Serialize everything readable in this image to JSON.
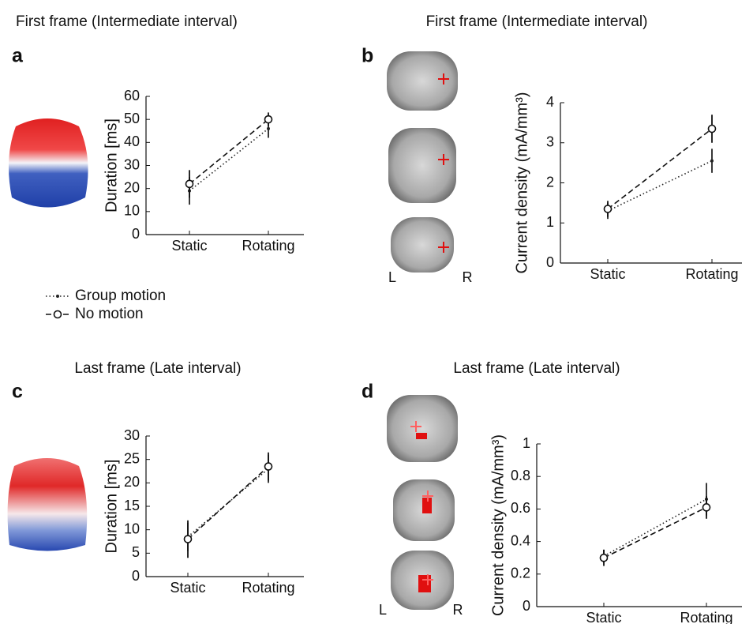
{
  "chart_data": [
    {
      "type": "line",
      "panel": "a",
      "title": "First frame (Intermediate interval)",
      "ylabel": "Duration [ms]",
      "categories": [
        "Static",
        "Rotating"
      ],
      "ylim": [
        0,
        60
      ],
      "yticks": [
        0,
        10,
        20,
        30,
        40,
        50,
        60
      ],
      "series": [
        {
          "name": "Group motion",
          "color": "#222222",
          "dash": "dotted",
          "marker": "dot",
          "values": [
            19,
            46
          ],
          "errors": [
            6,
            4
          ]
        },
        {
          "name": "No motion",
          "color": "#111111",
          "dash": "dashed",
          "marker": "circle",
          "values": [
            22,
            50
          ],
          "errors": [
            6,
            3
          ]
        }
      ],
      "legend": true
    },
    {
      "type": "line",
      "panel": "b",
      "title": "First frame (Intermediate interval)",
      "ylabel": "Current density (mA/mm³)",
      "categories": [
        "Static",
        "Rotating"
      ],
      "ylim": [
        0,
        4
      ],
      "yticks": [
        0,
        1,
        2,
        3,
        4
      ],
      "annotations": [
        "L",
        "R"
      ],
      "series": [
        {
          "name": "Group motion",
          "color": "#222222",
          "dash": "dotted",
          "marker": "dot",
          "values": [
            1.3,
            2.55
          ],
          "errors": [
            0.2,
            0.3
          ]
        },
        {
          "name": "No motion",
          "color": "#111111",
          "dash": "dashed",
          "marker": "circle",
          "values": [
            1.35,
            3.35
          ],
          "errors": [
            0.2,
            0.35
          ]
        }
      ],
      "legend": false
    },
    {
      "type": "line",
      "panel": "c",
      "title": "Last frame (Late interval)",
      "ylabel": "Duration [ms]",
      "categories": [
        "Static",
        "Rotating"
      ],
      "ylim": [
        0,
        30
      ],
      "yticks": [
        0,
        5,
        10,
        15,
        20,
        25,
        30
      ],
      "series": [
        {
          "name": "Group motion",
          "color": "#222222",
          "dash": "dotted",
          "marker": "dot",
          "values": [
            8.5,
            23
          ],
          "errors": [
            3,
            3
          ]
        },
        {
          "name": "No motion",
          "color": "#111111",
          "dash": "dashed",
          "marker": "circle",
          "values": [
            8,
            23.5
          ],
          "errors": [
            4,
            3
          ]
        }
      ],
      "legend": false
    },
    {
      "type": "line",
      "panel": "d",
      "title": "Last frame (Late interval)",
      "ylabel": "Current density (mA/mm³)",
      "categories": [
        "Static",
        "Rotating"
      ],
      "ylim": [
        0,
        1
      ],
      "yticks": [
        0,
        0.2,
        0.4,
        0.6,
        0.8,
        1
      ],
      "annotations": [
        "L",
        "R"
      ],
      "series": [
        {
          "name": "Group motion",
          "color": "#222222",
          "dash": "dotted",
          "marker": "dot",
          "values": [
            0.31,
            0.66
          ],
          "errors": [
            0.04,
            0.1
          ]
        },
        {
          "name": "No motion",
          "color": "#111111",
          "dash": "dashed",
          "marker": "circle",
          "values": [
            0.3,
            0.61
          ],
          "errors": [
            0.05,
            0.07
          ]
        }
      ],
      "legend": false
    }
  ]
}
